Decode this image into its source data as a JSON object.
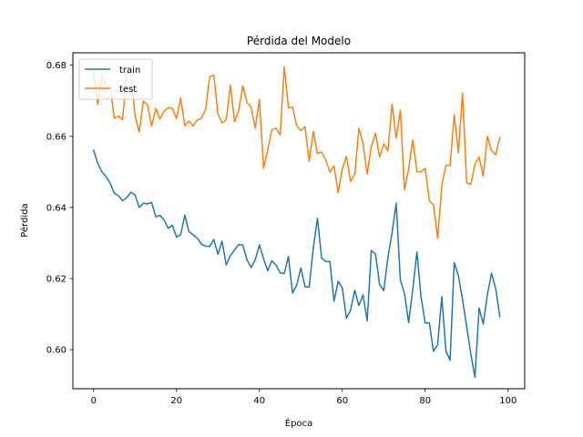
{
  "chart_data": {
    "type": "line",
    "title": "Pérdida del Modelo",
    "xlabel": "Época",
    "ylabel": "Pérdida",
    "xlim": [
      -5,
      104
    ],
    "ylim": [
      0.589,
      0.6835
    ],
    "xticks": [
      0,
      20,
      40,
      60,
      80,
      100
    ],
    "yticks": [
      0.6,
      0.62,
      0.64,
      0.66,
      0.68
    ],
    "ytick_labels": [
      "0.60",
      "0.62",
      "0.64",
      "0.66",
      "0.68"
    ],
    "legend_position": "top-left",
    "grid": false,
    "series": [
      {
        "name": "train",
        "color": "#1f77b4",
        "values": [
          0.6561,
          0.6524,
          0.65,
          0.6487,
          0.6468,
          0.644,
          0.6433,
          0.6419,
          0.6428,
          0.6443,
          0.6435,
          0.64,
          0.6412,
          0.641,
          0.6414,
          0.6374,
          0.6378,
          0.6365,
          0.6341,
          0.635,
          0.6317,
          0.6323,
          0.6378,
          0.6333,
          0.6323,
          0.6314,
          0.6297,
          0.6291,
          0.629,
          0.631,
          0.6268,
          0.6305,
          0.6238,
          0.6265,
          0.628,
          0.6296,
          0.6294,
          0.6253,
          0.6231,
          0.6253,
          0.6295,
          0.6256,
          0.6222,
          0.625,
          0.6238,
          0.6216,
          0.6214,
          0.6262,
          0.6159,
          0.6181,
          0.623,
          0.6177,
          0.6176,
          0.6286,
          0.637,
          0.6258,
          0.6248,
          0.6248,
          0.6136,
          0.6192,
          0.6174,
          0.6088,
          0.6112,
          0.6167,
          0.6124,
          0.6154,
          0.6081,
          0.6279,
          0.6269,
          0.6183,
          0.6166,
          0.6259,
          0.6328,
          0.6412,
          0.6196,
          0.6158,
          0.6076,
          0.617,
          0.6275,
          0.6147,
          0.6075,
          0.6075,
          0.5995,
          0.6014,
          0.6149,
          0.5996,
          0.597,
          0.6245,
          0.6208,
          0.6141,
          0.6065,
          0.5988,
          0.5922,
          0.6117,
          0.6072,
          0.6155,
          0.6215,
          0.6172,
          0.6093
        ]
      },
      {
        "name": "test",
        "color": "#ff7f0e",
        "values": [
          0.678,
          0.6689,
          0.677,
          0.6745,
          0.6738,
          0.6651,
          0.6657,
          0.6647,
          0.6778,
          0.6777,
          0.6658,
          0.6612,
          0.6699,
          0.6689,
          0.6628,
          0.6678,
          0.6649,
          0.6671,
          0.668,
          0.6679,
          0.665,
          0.6708,
          0.663,
          0.6643,
          0.6629,
          0.6646,
          0.6651,
          0.6675,
          0.6768,
          0.6772,
          0.6662,
          0.6638,
          0.6647,
          0.6744,
          0.6641,
          0.6672,
          0.6742,
          0.6695,
          0.6682,
          0.6623,
          0.6704,
          0.651,
          0.6562,
          0.6619,
          0.6623,
          0.6604,
          0.6796,
          0.6681,
          0.6682,
          0.663,
          0.6616,
          0.6627,
          0.653,
          0.6614,
          0.6552,
          0.6556,
          0.6534,
          0.6499,
          0.6517,
          0.6441,
          0.6509,
          0.6544,
          0.6473,
          0.6493,
          0.6623,
          0.6579,
          0.6494,
          0.6572,
          0.6609,
          0.6542,
          0.6579,
          0.6559,
          0.6691,
          0.6595,
          0.6674,
          0.6449,
          0.6509,
          0.659,
          0.65,
          0.65,
          0.651,
          0.6419,
          0.6407,
          0.6313,
          0.6462,
          0.6519,
          0.6518,
          0.6661,
          0.6554,
          0.6722,
          0.6469,
          0.6465,
          0.6521,
          0.6542,
          0.6488,
          0.66,
          0.656,
          0.6548,
          0.6596
        ]
      }
    ]
  }
}
